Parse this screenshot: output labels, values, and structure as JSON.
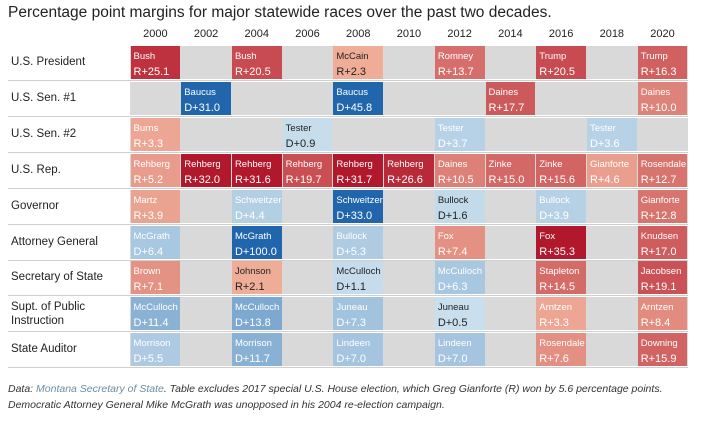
{
  "title": "Percentage point margins for major statewide races over the past two decades.",
  "footnote": {
    "prefix": "Data: ",
    "source": "Montana Secretary of State",
    "text": ". Table excludes 2017 special U.S. House election, which Greg Gianforte (R) won by 5.6 percentage points. Democratic Attorney General Mike McGrath was unopposed in his 2004 re-election campaign."
  },
  "chart_data": {
    "type": "table",
    "title": "Percentage point margins for major statewide races over the past two decades.",
    "years": [
      "2000",
      "2002",
      "2004",
      "2006",
      "2008",
      "2010",
      "2012",
      "2014",
      "2016",
      "2018",
      "2020"
    ],
    "rows": [
      {
        "label": "U.S. President",
        "cells": [
          {
            "year": "2000",
            "name": "Bush",
            "party": "R",
            "margin": 25.1,
            "text": "R+25.1"
          },
          {
            "year": "2004",
            "name": "Bush",
            "party": "R",
            "margin": 20.5,
            "text": "R+20.5"
          },
          {
            "year": "2008",
            "name": "McCain",
            "party": "R",
            "margin": 2.3,
            "text": "R+2.3"
          },
          {
            "year": "2012",
            "name": "Romney",
            "party": "R",
            "margin": 13.7,
            "text": "R+13.7"
          },
          {
            "year": "2016",
            "name": "Trump",
            "party": "R",
            "margin": 20.5,
            "text": "R+20.5"
          },
          {
            "year": "2020",
            "name": "Trump",
            "party": "R",
            "margin": 16.3,
            "text": "R+16.3"
          }
        ]
      },
      {
        "label": "U.S. Sen. #1",
        "cells": [
          {
            "year": "2002",
            "name": "Baucus",
            "party": "D",
            "margin": 31.0,
            "text": "D+31.0"
          },
          {
            "year": "2008",
            "name": "Baucus",
            "party": "D",
            "margin": 45.8,
            "text": "D+45.8"
          },
          {
            "year": "2014",
            "name": "Daines",
            "party": "R",
            "margin": 17.7,
            "text": "R+17.7"
          },
          {
            "year": "2020",
            "name": "Daines",
            "party": "R",
            "margin": 10.0,
            "text": "R+10.0"
          }
        ]
      },
      {
        "label": "U.S. Sen. #2",
        "cells": [
          {
            "year": "2000",
            "name": "Burns",
            "party": "R",
            "margin": 3.3,
            "text": "R+3.3"
          },
          {
            "year": "2006",
            "name": "Tester",
            "party": "D",
            "margin": 0.9,
            "text": "D+0.9"
          },
          {
            "year": "2012",
            "name": "Tester",
            "party": "D",
            "margin": 3.7,
            "text": "D+3.7"
          },
          {
            "year": "2018",
            "name": "Tester",
            "party": "D",
            "margin": 3.6,
            "text": "D+3.6"
          }
        ]
      },
      {
        "label": "U.S. Rep.",
        "cells": [
          {
            "year": "2000",
            "name": "Rehberg",
            "party": "R",
            "margin": 5.2,
            "text": "R+5.2"
          },
          {
            "year": "2002",
            "name": "Rehberg",
            "party": "R",
            "margin": 32.0,
            "text": "R+32.0"
          },
          {
            "year": "2004",
            "name": "Rehberg",
            "party": "R",
            "margin": 31.6,
            "text": "R+31.6"
          },
          {
            "year": "2006",
            "name": "Rehberg",
            "party": "R",
            "margin": 19.7,
            "text": "R+19.7"
          },
          {
            "year": "2008",
            "name": "Rehberg",
            "party": "R",
            "margin": 31.7,
            "text": "R+31.7"
          },
          {
            "year": "2010",
            "name": "Rehberg",
            "party": "R",
            "margin": 26.6,
            "text": "R+26.6"
          },
          {
            "year": "2012",
            "name": "Daines",
            "party": "R",
            "margin": 10.5,
            "text": "R+10.5"
          },
          {
            "year": "2014",
            "name": "Zinke",
            "party": "R",
            "margin": 15.0,
            "text": "R+15.0"
          },
          {
            "year": "2016",
            "name": "Zinke",
            "party": "R",
            "margin": 15.6,
            "text": "R+15.6"
          },
          {
            "year": "2018",
            "name": "Gianforte",
            "party": "R",
            "margin": 4.6,
            "text": "R+4.6"
          },
          {
            "year": "2020",
            "name": "Rosendale",
            "party": "R",
            "margin": 12.7,
            "text": "R+12.7"
          }
        ]
      },
      {
        "label": "Governor",
        "cells": [
          {
            "year": "2000",
            "name": "Martz",
            "party": "R",
            "margin": 3.9,
            "text": "R+3.9"
          },
          {
            "year": "2004",
            "name": "Schweitzer",
            "party": "D",
            "margin": 4.4,
            "text": "D+4.4"
          },
          {
            "year": "2008",
            "name": "Schweitzer",
            "party": "D",
            "margin": 33.0,
            "text": "D+33.0"
          },
          {
            "year": "2012",
            "name": "Bullock",
            "party": "D",
            "margin": 1.6,
            "text": "D+1.6"
          },
          {
            "year": "2016",
            "name": "Bullock",
            "party": "D",
            "margin": 3.9,
            "text": "D+3.9"
          },
          {
            "year": "2020",
            "name": "Gianforte",
            "party": "R",
            "margin": 12.8,
            "text": "R+12.8"
          }
        ]
      },
      {
        "label": "Attorney General",
        "cells": [
          {
            "year": "2000",
            "name": "McGrath",
            "party": "D",
            "margin": 6.4,
            "text": "D+6.4"
          },
          {
            "year": "2004",
            "name": "McGrath",
            "party": "D",
            "margin": 100.0,
            "text": "D+100.0"
          },
          {
            "year": "2008",
            "name": "Bullock",
            "party": "D",
            "margin": 5.3,
            "text": "D+5.3"
          },
          {
            "year": "2012",
            "name": "Fox",
            "party": "R",
            "margin": 7.4,
            "text": "R+7.4"
          },
          {
            "year": "2016",
            "name": "Fox",
            "party": "R",
            "margin": 35.3,
            "text": "R+35.3"
          },
          {
            "year": "2020",
            "name": "Knudsen",
            "party": "R",
            "margin": 17.0,
            "text": "R+17.0"
          }
        ]
      },
      {
        "label": "Secretary of State",
        "cells": [
          {
            "year": "2000",
            "name": "Brown",
            "party": "R",
            "margin": 7.1,
            "text": "R+7.1"
          },
          {
            "year": "2004",
            "name": "Johnson",
            "party": "R",
            "margin": 2.1,
            "text": "R+2.1"
          },
          {
            "year": "2008",
            "name": "McCulloch",
            "party": "D",
            "margin": 1.1,
            "text": "D+1.1"
          },
          {
            "year": "2012",
            "name": "McCulloch",
            "party": "D",
            "margin": 6.3,
            "text": "D+6.3"
          },
          {
            "year": "2016",
            "name": "Stapleton",
            "party": "R",
            "margin": 14.5,
            "text": "R+14.5"
          },
          {
            "year": "2020",
            "name": "Jacobsen",
            "party": "R",
            "margin": 19.1,
            "text": "R+19.1"
          }
        ]
      },
      {
        "label": "Supt. of Public Instruction",
        "cells": [
          {
            "year": "2000",
            "name": "McCulloch",
            "party": "D",
            "margin": 11.4,
            "text": "D+11.4"
          },
          {
            "year": "2004",
            "name": "McCulloch",
            "party": "D",
            "margin": 13.8,
            "text": "D+13.8"
          },
          {
            "year": "2008",
            "name": "Juneau",
            "party": "D",
            "margin": 7.3,
            "text": "D+7.3"
          },
          {
            "year": "2012",
            "name": "Juneau",
            "party": "D",
            "margin": 0.5,
            "text": "D+0.5"
          },
          {
            "year": "2016",
            "name": "Arntzen",
            "party": "R",
            "margin": 3.3,
            "text": "R+3.3"
          },
          {
            "year": "2020",
            "name": "Arntzen",
            "party": "R",
            "margin": 8.4,
            "text": "R+8.4"
          }
        ]
      },
      {
        "label": "State Auditor",
        "cells": [
          {
            "year": "2000",
            "name": "Morrison",
            "party": "D",
            "margin": 5.5,
            "text": "D+5.5"
          },
          {
            "year": "2004",
            "name": "Morrison",
            "party": "D",
            "margin": 11.7,
            "text": "D+11.7"
          },
          {
            "year": "2008",
            "name": "Lindeen",
            "party": "D",
            "margin": 7.0,
            "text": "D+7.0"
          },
          {
            "year": "2012",
            "name": "Lindeen",
            "party": "D",
            "margin": 7.0,
            "text": "D+7.0"
          },
          {
            "year": "2016",
            "name": "Rosendale",
            "party": "R",
            "margin": 7.6,
            "text": "R+7.6"
          },
          {
            "year": "2020",
            "name": "Downing",
            "party": "R",
            "margin": 15.9,
            "text": "R+15.9"
          }
        ]
      }
    ]
  }
}
